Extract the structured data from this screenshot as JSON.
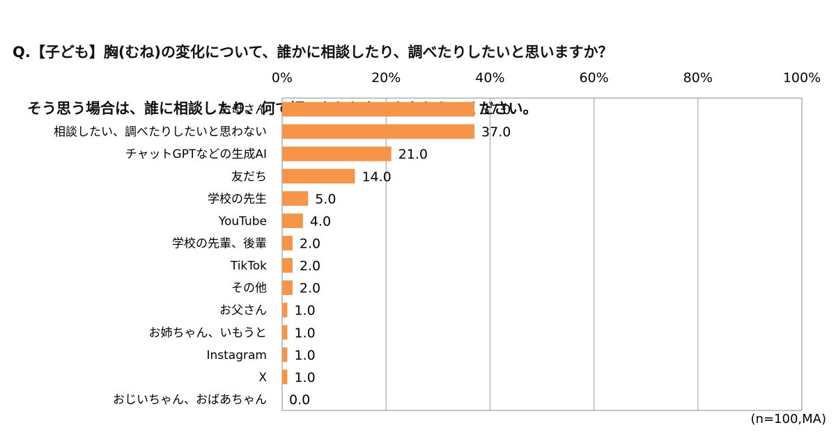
{
  "question": {
    "line1": "Q.【子ども】胸(むね)の変化について、誰かに相談したり、調べたりしたいと思いますか？",
    "line2": "　そう思う場合は、誰に相談したり、何で調べたりしたいかおしえてください。"
  },
  "note": "(n=100,MA)",
  "chart_data": {
    "type": "bar",
    "orientation": "horizontal",
    "categories": [
      "お母さん",
      "相談したい、調べたりしたいと思わない",
      "チャットGPTなどの生成AI",
      "友だち",
      "学校の先生",
      "YouTube",
      "学校の先輩、後輩",
      "TikTok",
      "その他",
      "お父さん",
      "お姉ちゃん、いもうと",
      "Instagram",
      "X",
      "おじいちゃん、おばあちゃん"
    ],
    "values": [
      37.0,
      37.0,
      21.0,
      14.0,
      5.0,
      4.0,
      2.0,
      2.0,
      2.0,
      1.0,
      1.0,
      1.0,
      1.0,
      0.0
    ],
    "value_labels": [
      "37.0",
      "37.0",
      "21.0",
      "14.0",
      "5.0",
      "4.0",
      "2.0",
      "2.0",
      "2.0",
      "1.0",
      "1.0",
      "1.0",
      "1.0",
      "0.0"
    ],
    "xlim": [
      0,
      100
    ],
    "ticks": [
      "0%",
      "20%",
      "40%",
      "60%",
      "80%",
      "100%"
    ],
    "grid": true,
    "color": "#F4954A"
  }
}
